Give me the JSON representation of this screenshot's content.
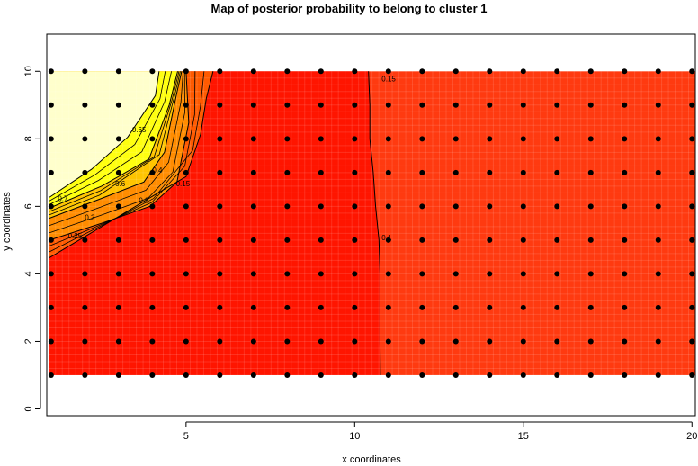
{
  "chart_data": {
    "type": "heatmap",
    "title": "Map of posterior probability to belong to cluster  1",
    "xlabel": "x coordinates",
    "ylabel": "y coordinates",
    "xlim": [
      0.87,
      20.1
    ],
    "ylim": [
      -0.2,
      11.1
    ],
    "x_ticks": [
      5,
      10,
      15,
      20
    ],
    "y_ticks": [
      0,
      2,
      4,
      6,
      8,
      10
    ],
    "grid_points": {
      "x": [
        1,
        2,
        3,
        4,
        5,
        6,
        7,
        8,
        9,
        10,
        11,
        12,
        13,
        14,
        15,
        16,
        17,
        18,
        19,
        20
      ],
      "y": [
        1,
        2,
        3,
        4,
        5,
        6,
        7,
        8,
        9,
        10
      ]
    },
    "color_scale": "heat",
    "colors": {
      "low": "#ff1500",
      "low_right": "#ff3a10",
      "c015": "#ff5a00",
      "c025": "#ff8c00",
      "c04": "#ffc400",
      "c055": "#ffff10",
      "c065": "#ffffcc"
    },
    "contour_levels": [
      "0.1",
      "0.15",
      "0.2",
      "0.25",
      "0.3",
      "0.35",
      "0.4",
      "0.45",
      "0.5",
      "0.55",
      "0.6",
      "0.65",
      "0.7"
    ],
    "contours": [
      {
        "level": "0.1",
        "points": [
          [
            10.41,
            10
          ],
          [
            10.45,
            9
          ],
          [
            10.45,
            8
          ],
          [
            10.55,
            7
          ],
          [
            10.62,
            6
          ],
          [
            10.72,
            5
          ],
          [
            10.75,
            4
          ],
          [
            10.75,
            2
          ],
          [
            10.76,
            1
          ]
        ]
      },
      {
        "level": "0.15",
        "points": [
          [
            0.95,
            4.48
          ],
          [
            2.5,
            5.4
          ],
          [
            4.09,
            6.35
          ],
          [
            5,
            6.88
          ],
          [
            5.43,
            8.13
          ],
          [
            5.6,
            9.2
          ],
          [
            5.8,
            10
          ]
        ]
      },
      {
        "level": "0.25",
        "points": [
          [
            0.95,
            5.0
          ],
          [
            2.5,
            5.5
          ],
          [
            3.93,
            6.0
          ],
          [
            4.73,
            6.72
          ],
          [
            5.08,
            8.48
          ],
          [
            5,
            10
          ]
        ]
      },
      {
        "level": "0.4",
        "points": [
          [
            0.95,
            5.65
          ],
          [
            2.4,
            6.2
          ],
          [
            3.75,
            6.72
          ],
          [
            4.36,
            7.6
          ],
          [
            4.73,
            9.38
          ],
          [
            4.87,
            10
          ]
        ]
      },
      {
        "level": "0.55",
        "points": [
          [
            0.95,
            5.95
          ],
          [
            2.5,
            6.6
          ],
          [
            3.9,
            7.4
          ],
          [
            4.5,
            9.0
          ],
          [
            4.75,
            10
          ]
        ]
      },
      {
        "level": "0.65",
        "points": [
          [
            0.95,
            6.27
          ],
          [
            2.2,
            7.1
          ],
          [
            3.27,
            8.05
          ],
          [
            4.09,
            9.28
          ],
          [
            4.2,
            10
          ]
        ]
      }
    ],
    "contour_labels": [
      {
        "text": "0.7",
        "x": 1.2,
        "y": 6.15
      },
      {
        "text": "0.65",
        "x": 3.4,
        "y": 8.2
      },
      {
        "text": "0.6",
        "x": 2.9,
        "y": 6.6
      },
      {
        "text": "0.4",
        "x": 4.0,
        "y": 7.0
      },
      {
        "text": "0.3",
        "x": 2.0,
        "y": 5.6
      },
      {
        "text": "0.25",
        "x": 1.5,
        "y": 5.05
      },
      {
        "text": "0.2",
        "x": 3.6,
        "y": 6.1
      },
      {
        "text": "0.15",
        "x": 4.7,
        "y": 6.6
      },
      {
        "text": "0.15",
        "x": 10.8,
        "y": 9.7
      },
      {
        "text": "0.1",
        "x": 10.8,
        "y": 5.0
      }
    ]
  }
}
